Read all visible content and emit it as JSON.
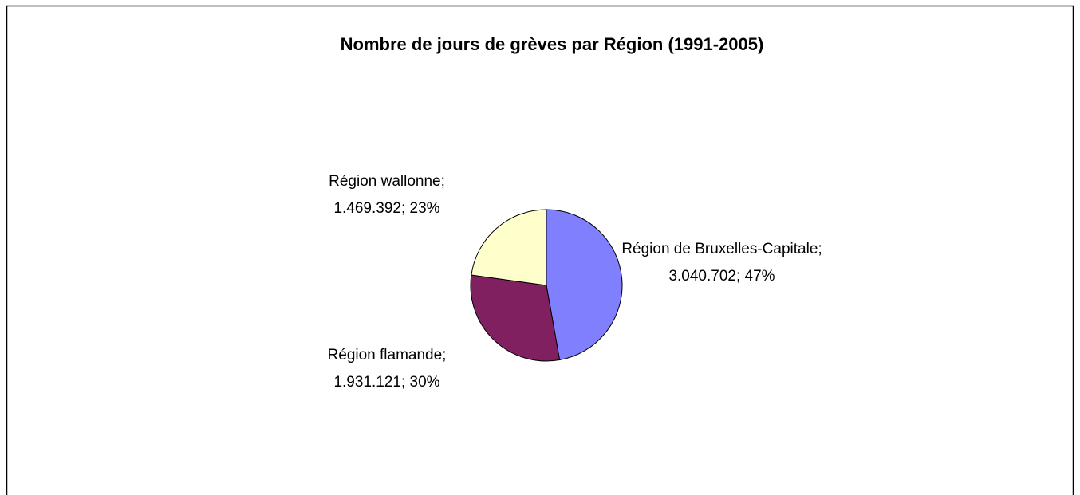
{
  "chart_data": {
    "type": "pie",
    "title": "Nombre de jours de grèves par Région (1991-2005)",
    "values": [
      3040702,
      1931121,
      1469392
    ],
    "value_labels": [
      "Région de Bruxelles-Capitale; 3.040.702; 47%",
      "Région flamande; 1.931.121; 30%",
      "Région wallonne; 1.469.392; 23%"
    ],
    "colors": [
      "#8080ff",
      "#802060",
      "#ffffcc"
    ]
  }
}
